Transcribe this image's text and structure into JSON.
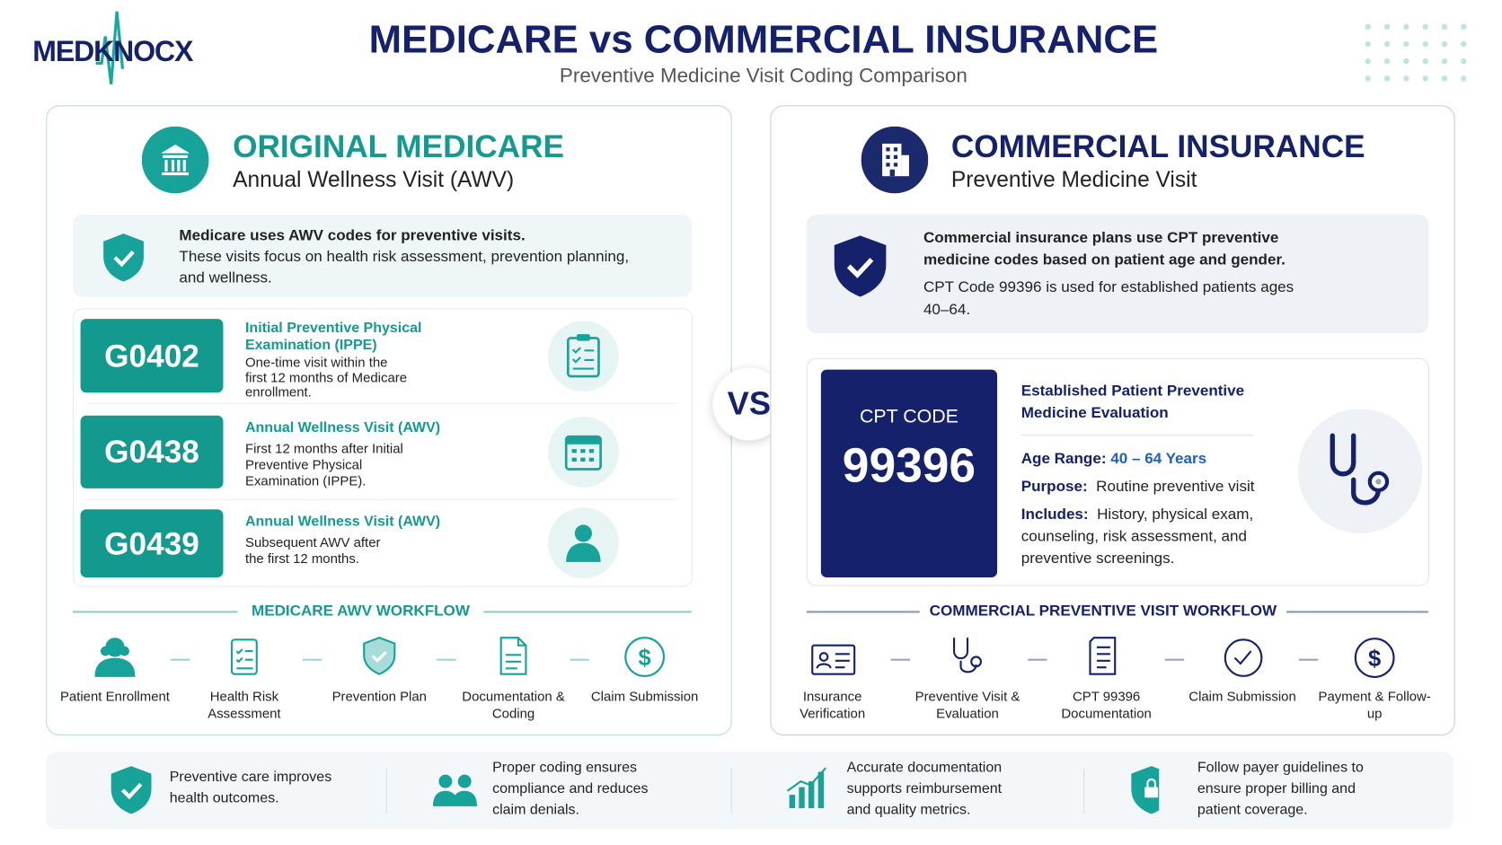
{
  "header": {
    "logo": "MEDKNOCX",
    "title": "MEDICARE vs COMMERCIAL INSURANCE",
    "subtitle": "Preventive Medicine Visit Coding Comparison"
  },
  "vs": "VS",
  "medicare": {
    "title": "ORIGINAL MEDICARE",
    "subtitle": "Annual Wellness Visit (AWV)",
    "info": {
      "heading": "Medicare uses AWV codes for preventive visits.",
      "text": "These visits focus on health risk assessment, prevention planning, and wellness."
    },
    "codes": [
      {
        "code": "G0402",
        "title": "Initial Preventive Physical Examination (IPPE)",
        "description": "One-time visit within the first 12 months of Medicare enrollment."
      },
      {
        "code": "G0438",
        "title": "Annual Wellness Visit (AWV)",
        "description": "First 12 months after Initial Preventive Physical Examination (IPPE)."
      },
      {
        "code": "G0439",
        "title": "Annual Wellness Visit (AWV)",
        "description": "Subsequent AWV after the first 12 months."
      }
    ],
    "workflow": {
      "title": "MEDICARE AWV WORKFLOW",
      "steps": [
        "Patient Enrollment",
        "Health Risk Assessment",
        "Prevention Plan",
        "Documentation & Coding",
        "Claim Submission"
      ]
    }
  },
  "commercial": {
    "title": "COMMERCIAL INSURANCE",
    "subtitle": "Preventive Medicine Visit",
    "info": {
      "heading": "Commercial insurance plans use CPT preventive medicine codes based on patient age and gender.",
      "text": "CPT Code 99396 is used for established patients ages 40–64."
    },
    "cpt": {
      "label": "CPT CODE",
      "code": "99396",
      "title": "Established Patient Preventive Medicine Evaluation",
      "details": [
        {
          "label": "Age Range:",
          "value": "40 – 64 Years"
        },
        {
          "label": "Purpose:",
          "value": "Routine preventive visit"
        },
        {
          "label": "Includes:",
          "value": "History, physical exam, counseling, risk assessment, and preventive screenings."
        }
      ]
    },
    "workflow": {
      "title": "COMMERCIAL PREVENTIVE VISIT WORKFLOW",
      "steps": [
        "Insurance Verification",
        "Preventive Visit & Evaluation",
        "CPT 99396 Documentation",
        "Claim Submission",
        "Payment & Follow-up"
      ]
    }
  },
  "footer": [
    "Preventive care improves health outcomes.",
    "Proper coding ensures compliance and reduces claim denials.",
    "Accurate documentation supports reimbursement and quality metrics.",
    "Follow payer guidelines to ensure proper billing and patient coverage."
  ]
}
